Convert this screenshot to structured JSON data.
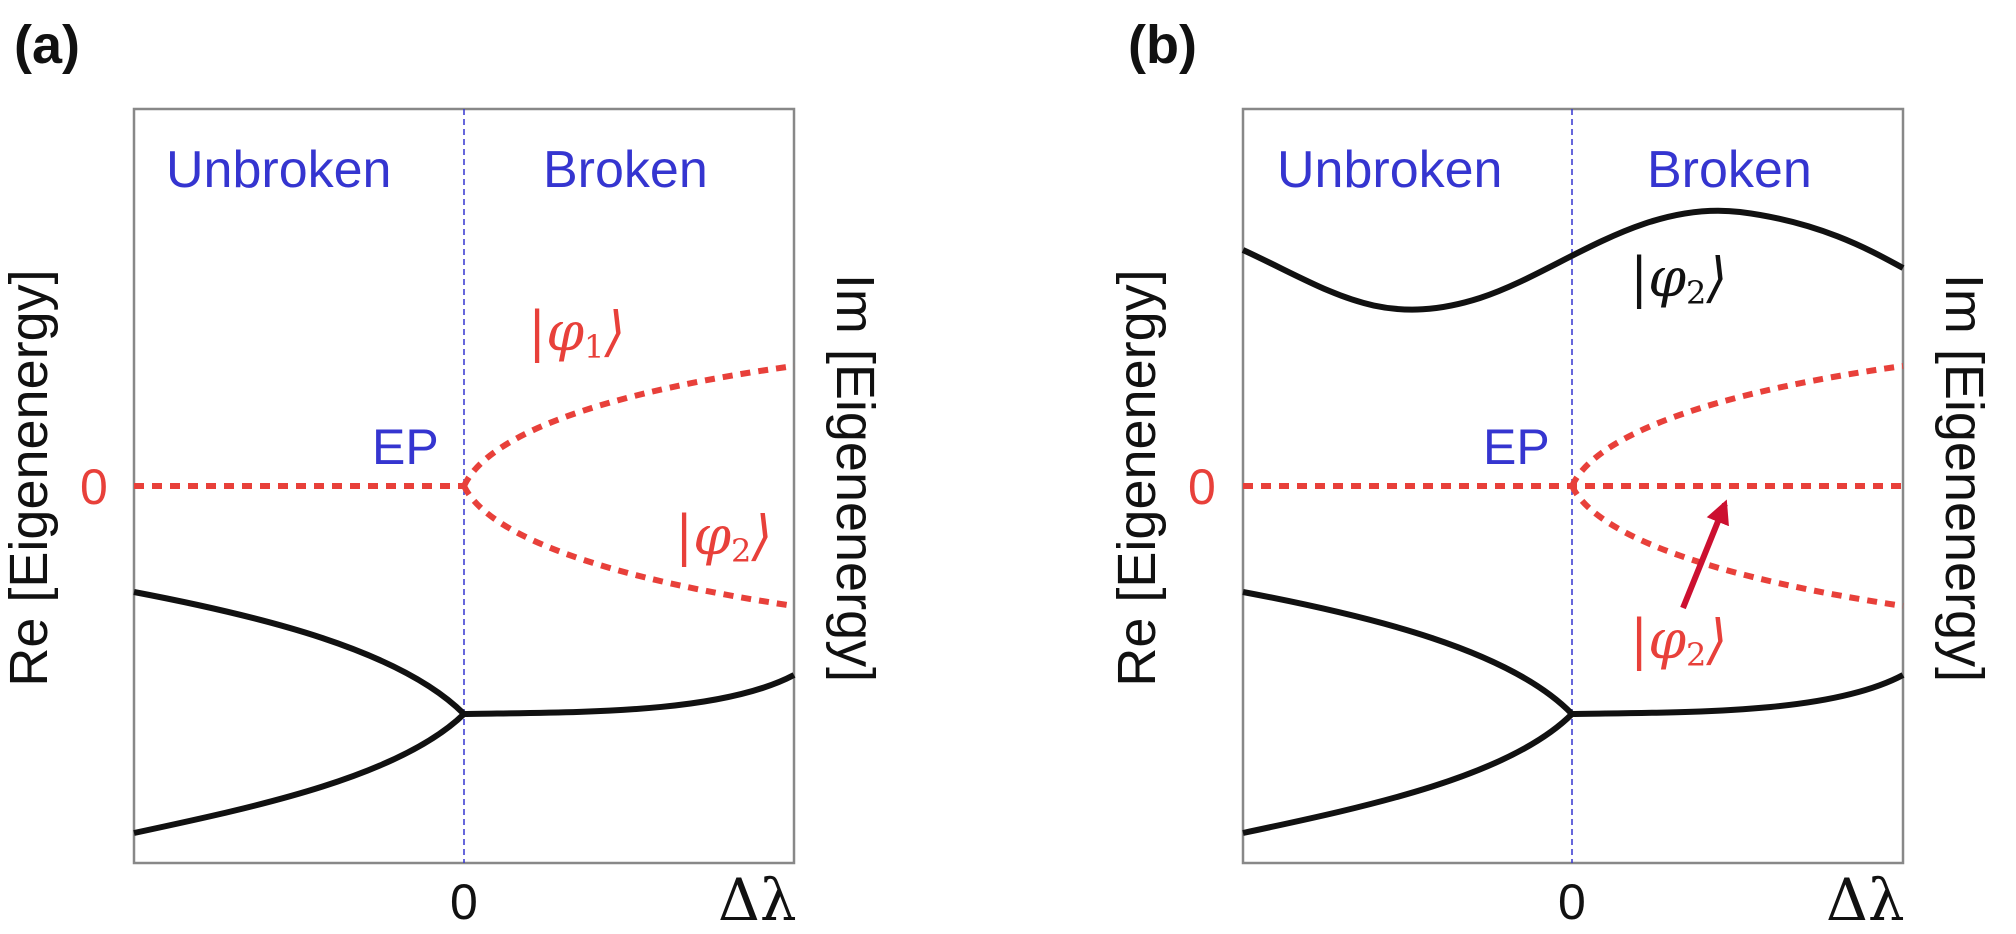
{
  "colors": {
    "frame": "#888888",
    "region": "#3535d0",
    "red": "#e8403a",
    "black": "#111111",
    "arrow": "#cc1030"
  },
  "panels": [
    {
      "letter": "(a)",
      "regions": [
        "Unbroken",
        "Broken"
      ],
      "ep": "EP",
      "y_zero": "0",
      "x_zero": "0",
      "x_label": "Δλ",
      "left_axis": "Re [Eigenenergy]",
      "right_axis": "Im [Eigenenergy]",
      "ket_labels": [
        {
          "sym": "φ",
          "sub": "1",
          "color": "red"
        },
        {
          "sym": "φ",
          "sub": "2",
          "color": "red"
        }
      ]
    },
    {
      "letter": "(b)",
      "regions": [
        "Unbroken",
        "Broken"
      ],
      "ep": "EP",
      "y_zero": "0",
      "x_zero": "0",
      "x_label": "Δλ",
      "left_axis": "Re [Eigenenergy]",
      "right_axis": "Im [Eigenenergy]",
      "ket_labels": [
        {
          "sym": "φ",
          "sub": "2",
          "color": "black"
        },
        {
          "sym": "φ",
          "sub": "2",
          "color": "red"
        }
      ]
    }
  ]
}
